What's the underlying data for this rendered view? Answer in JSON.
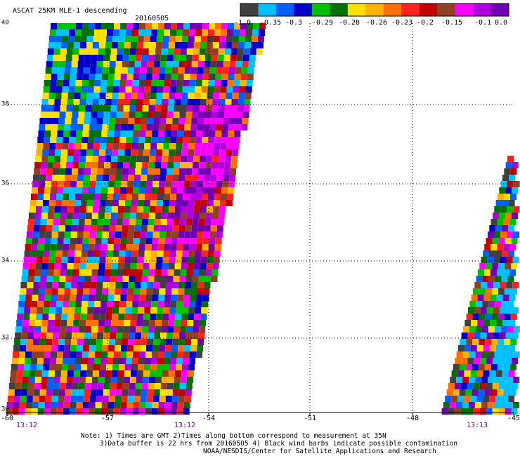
{
  "title": "ASCAT 25KM MLE-1 descending",
  "date": "20160505",
  "colorbar": {
    "colors": [
      "#404040",
      "#00c0ff",
      "#0060ff",
      "#0000c8",
      "#00c000",
      "#007000",
      "#ffe000",
      "#ffb000",
      "#ff7000",
      "#ff2020",
      "#c00000",
      "#904020",
      "#ff00ff",
      "#b000e0",
      "#7000b0"
    ],
    "tick_labels": [
      "-1.0",
      "-0.35",
      "-0.3",
      "-0.29",
      "-0.28",
      "-0.26",
      "-0.23",
      "-0.2",
      "-0.15",
      "-0.1",
      "0.0"
    ]
  },
  "axes": {
    "lat_labels": [
      "40",
      "38",
      "36",
      "34",
      "32",
      "30"
    ],
    "lon_labels": [
      "-60",
      "-57",
      "-54",
      "-51",
      "-48",
      "-45"
    ]
  },
  "times": [
    "13:12",
    "13:12",
    "13:13"
  ],
  "notes": [
    "Note: 1) Times are GMT 2)Times along bottom correspond to measurement at 35N",
    "3)Data buffer is 22 hrs from 20160505 4) Black wind barbs indicate possible contamination",
    "NOAA/NESDIS/Center for Satellite Applications and Research"
  ]
}
